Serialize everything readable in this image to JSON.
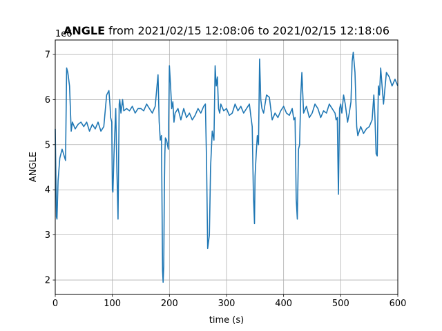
{
  "chart_data": {
    "type": "line",
    "title_bold": "ANGLE",
    "title_rest": " from 2021/02/15 12:08:06 to 2021/02/15 12:18:06",
    "xlabel": "time (s)",
    "ylabel": "ANGLE",
    "offset_text": "1e6",
    "xlim": [
      0,
      600
    ],
    "ylim": [
      1.68,
      7.32
    ],
    "xticks": [
      0,
      100,
      200,
      300,
      400,
      500,
      600
    ],
    "yticks": [
      2,
      3,
      4,
      5,
      6,
      7
    ],
    "grid": true,
    "line_color": "#1f77b4",
    "series": [
      {
        "x": [
          0,
          2,
          3,
          5,
          8,
          12,
          18,
          20,
          22,
          25,
          28,
          30,
          35,
          40,
          45,
          50,
          55,
          60,
          65,
          70,
          75,
          80,
          85,
          90,
          94,
          96,
          97,
          99,
          100,
          101,
          103,
          105,
          106,
          108,
          110,
          112,
          113,
          115,
          118,
          120,
          125,
          130,
          135,
          140,
          145,
          150,
          155,
          160,
          165,
          170,
          175,
          180,
          182,
          184,
          186,
          188,
          189,
          190,
          191,
          192,
          193,
          195,
          198,
          200,
          202,
          204,
          206,
          208,
          210,
          215,
          220,
          225,
          230,
          235,
          240,
          245,
          250,
          255,
          260,
          263,
          265,
          267,
          270,
          272,
          275,
          278,
          280,
          282,
          284,
          286,
          288,
          290,
          295,
          300,
          305,
          310,
          315,
          320,
          325,
          330,
          335,
          340,
          343,
          345,
          347,
          349,
          350,
          352,
          354,
          356,
          358,
          360,
          362,
          365,
          370,
          375,
          380,
          385,
          390,
          395,
          400,
          405,
          410,
          415,
          418,
          420,
          422,
          424,
          426,
          428,
          430,
          432,
          435,
          440,
          445,
          450,
          455,
          460,
          465,
          470,
          475,
          480,
          485,
          490,
          492,
          494,
          496,
          498,
          500,
          502,
          505,
          508,
          512,
          515,
          518,
          520,
          522,
          525,
          528,
          530,
          535,
          540,
          545,
          550,
          555,
          558,
          560,
          562,
          564,
          566,
          568,
          570,
          575,
          580,
          585,
          590,
          595,
          600
        ],
        "values": [
          5.35,
          3.4,
          3.35,
          4.2,
          4.7,
          4.9,
          4.65,
          6.7,
          6.6,
          6.3,
          5.3,
          5.5,
          5.35,
          5.45,
          5.5,
          5.4,
          5.5,
          5.3,
          5.45,
          5.35,
          5.5,
          5.3,
          5.4,
          6.1,
          6.2,
          5.85,
          5.6,
          5.5,
          4.0,
          3.95,
          4.8,
          5.5,
          5.8,
          4.4,
          3.35,
          5.9,
          6.0,
          5.7,
          6.0,
          5.75,
          5.8,
          5.75,
          5.85,
          5.7,
          5.8,
          5.8,
          5.75,
          5.9,
          5.8,
          5.7,
          5.85,
          6.55,
          5.5,
          5.1,
          5.2,
          2.2,
          1.95,
          2.3,
          3.9,
          4.8,
          5.15,
          5.1,
          4.9,
          6.75,
          6.3,
          5.8,
          5.95,
          5.5,
          5.7,
          5.8,
          5.55,
          5.8,
          5.6,
          5.7,
          5.55,
          5.65,
          5.8,
          5.7,
          5.85,
          5.9,
          4.6,
          2.7,
          3.0,
          4.5,
          5.3,
          5.1,
          6.75,
          6.3,
          6.5,
          5.8,
          5.7,
          5.9,
          5.75,
          5.8,
          5.65,
          5.7,
          5.9,
          5.75,
          5.85,
          5.7,
          5.8,
          5.9,
          5.6,
          5.4,
          3.9,
          3.25,
          4.3,
          4.8,
          5.2,
          5.0,
          6.9,
          6.0,
          5.8,
          5.7,
          6.1,
          6.05,
          5.55,
          5.7,
          5.6,
          5.75,
          5.85,
          5.7,
          5.65,
          5.8,
          5.55,
          5.6,
          3.8,
          3.35,
          4.9,
          5.0,
          6.1,
          6.6,
          5.7,
          5.85,
          5.6,
          5.7,
          5.9,
          5.8,
          5.6,
          5.75,
          5.7,
          5.9,
          5.8,
          5.7,
          5.55,
          5.6,
          3.9,
          5.8,
          5.9,
          5.7,
          6.1,
          5.9,
          5.5,
          5.7,
          5.95,
          6.85,
          7.05,
          6.6,
          5.4,
          5.2,
          5.4,
          5.25,
          5.35,
          5.4,
          5.55,
          6.1,
          5.6,
          4.8,
          4.75,
          6.3,
          6.1,
          6.7,
          5.9,
          6.6,
          6.5,
          6.3,
          6.45,
          6.3
        ]
      }
    ]
  }
}
